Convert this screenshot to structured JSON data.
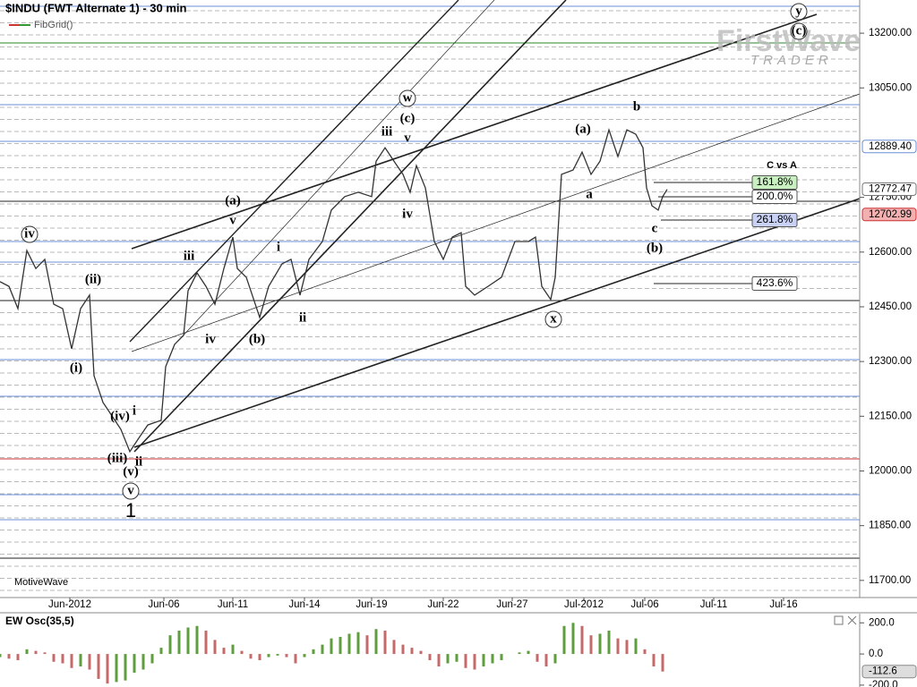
{
  "chart_data": [
    {
      "type": "line",
      "title": "$INDU (FWT Alternate 1) - 30 min",
      "indicator": "FibGrid()",
      "watermark": [
        "FirstWave",
        "TRADER"
      ],
      "footer": "MotiveWave",
      "series": [
        {
          "name": "$INDU",
          "color": "#333333",
          "x": [
            0,
            2.5,
            5,
            7.5,
            10,
            12.5,
            15,
            17.5,
            20,
            22.5,
            25,
            26.25,
            28.75,
            31.25,
            33.75,
            36.25,
            38.75,
            41.25,
            45,
            46.25,
            48.75,
            51.25,
            52.5,
            55,
            57.5,
            60,
            62.5,
            65,
            66.25,
            68.75,
            72.5,
            75,
            78.75,
            81.25,
            83.75,
            86.25,
            90,
            92.5,
            96.25,
            100,
            103.75,
            105,
            107.5,
            110,
            112.5,
            114.5,
            116.25,
            118.75,
            121.25,
            123.75,
            126.25,
            128.75,
            130,
            132.5,
            136.25,
            140,
            143.75,
            147.5,
            149.5,
            151.25,
            153.75,
            155,
            156.75,
            160,
            162.5,
            165,
            167.5,
            170,
            172.5,
            175,
            177.5,
            179.5,
            180.5,
            182,
            183.75,
            185,
            186.25
          ],
          "values": [
            12519,
            12506,
            12445,
            12604,
            12555,
            12580,
            12457,
            12445,
            12335,
            12445,
            12482,
            12261,
            12188,
            12151,
            12114,
            12053,
            12090,
            12126,
            12139,
            12286,
            12347,
            12372,
            12494,
            12543,
            12506,
            12457,
            12555,
            12641,
            12555,
            12531,
            12421,
            12506,
            12568,
            12580,
            12482,
            12580,
            12629,
            12715,
            12752,
            12764,
            12752,
            12849,
            12886,
            12849,
            12813,
            12764,
            12837,
            12776,
            12629,
            12580,
            12641,
            12653,
            12506,
            12482,
            12506,
            12531,
            12629,
            12629,
            12641,
            12506,
            12470,
            12531,
            12813,
            12825,
            12874,
            12813,
            12849,
            12935,
            12862,
            12935,
            12923,
            12886,
            12776,
            12727,
            12715,
            12752,
            12772
          ]
        }
      ],
      "xlim": [
        0,
        240
      ],
      "xticks": [
        {
          "value": 19.5,
          "label": "Jun-2012"
        },
        {
          "value": 45.75,
          "label": "Jun-06"
        },
        {
          "value": 65,
          "label": "Jun-11"
        },
        {
          "value": 85,
          "label": "Jun-14"
        },
        {
          "value": 103.75,
          "label": "Jun-19"
        },
        {
          "value": 123.75,
          "label": "Jun-22"
        },
        {
          "value": 143,
          "label": "Jun-27"
        },
        {
          "value": 163,
          "label": "Jul-2012"
        },
        {
          "value": 180,
          "label": "Jul-06"
        },
        {
          "value": 199.25,
          "label": "Jul-11"
        },
        {
          "value": 218.75,
          "label": "Jul-16"
        }
      ],
      "ylim": [
        11653,
        13291
      ],
      "yticks": [
        {
          "value": 11700,
          "label": "11700.00"
        },
        {
          "value": 11850,
          "label": "11850.00"
        },
        {
          "value": 12000,
          "label": "12000.00"
        },
        {
          "value": 12150,
          "label": "12150.00"
        },
        {
          "value": 12300,
          "label": "12300.00"
        },
        {
          "value": 12450,
          "label": "12450.00"
        },
        {
          "value": 12600,
          "label": "12600.00"
        },
        {
          "value": 12750,
          "label": "12750.00"
        },
        {
          "value": 13050,
          "label": "13050.00"
        },
        {
          "value": 13200,
          "label": "13200.00"
        }
      ],
      "price_markers": [
        {
          "value": 12889.4,
          "label": "12889.40"
        },
        {
          "value": 12772.47,
          "label": "12772.47"
        },
        {
          "value": 12702.99,
          "label": "12702.99"
        }
      ],
      "wave_labels": [
        "iv",
        "(ii)",
        "(i)",
        "(iv)",
        "i",
        "(iii)",
        "ii",
        "(v)",
        "v",
        "1",
        "(a)",
        "v",
        "iii",
        "iv",
        "(b)",
        "i",
        "ii",
        "w",
        "(c)",
        "iii",
        "v",
        "iv",
        "(a)",
        "b",
        "a",
        "c",
        "(b)",
        "x",
        "y",
        "(c)"
      ],
      "fib_labels": [
        "C vs A",
        "161.8%",
        "200.0%",
        "261.8%",
        "423.6%"
      ]
    },
    {
      "type": "bar",
      "title": "EW Osc(35,5)",
      "up_color": "#5e9e3e",
      "down_color": "#c46a6a",
      "x": [
        0,
        2.5,
        5,
        7.5,
        10,
        12.5,
        15,
        17.5,
        20,
        22.5,
        25,
        27.5,
        30,
        32.5,
        35,
        37.5,
        40,
        42.5,
        45,
        47.5,
        50,
        52.5,
        55,
        57.5,
        60,
        62.5,
        65,
        67.5,
        70,
        72.5,
        75,
        77.5,
        80,
        82.5,
        85,
        87.5,
        90,
        92.5,
        95,
        97.5,
        100,
        102.5,
        105,
        107.5,
        110,
        112.5,
        115,
        117.5,
        120,
        122.5,
        125,
        127.5,
        130,
        132.5,
        135,
        137.5,
        140,
        142.5,
        145,
        147.5,
        150,
        152.5,
        155,
        157.5,
        160,
        162.5,
        165,
        167.5,
        170,
        172.5,
        175,
        177.5,
        180,
        182.5,
        185
      ],
      "values": [
        -20,
        -30,
        -40,
        30,
        20,
        10,
        -50,
        -60,
        -90,
        -80,
        -100,
        -160,
        -190,
        -180,
        -170,
        -120,
        -100,
        -60,
        40,
        120,
        150,
        170,
        180,
        150,
        90,
        40,
        60,
        20,
        -30,
        -40,
        -20,
        -10,
        -20,
        -60,
        -20,
        30,
        60,
        100,
        110,
        130,
        140,
        120,
        160,
        150,
        90,
        60,
        40,
        20,
        -40,
        -80,
        -60,
        -50,
        -90,
        -100,
        -80,
        -60,
        -40,
        0,
        10,
        20,
        -50,
        -80,
        -60,
        180,
        200,
        180,
        120,
        130,
        150,
        100,
        90,
        100,
        30,
        -80,
        -112.6
      ],
      "xlim": [
        0,
        240
      ],
      "ylim": [
        -212,
        259
      ],
      "yticks": [
        {
          "value": 200,
          "label": "200.0"
        },
        {
          "value": 0,
          "label": "0.0"
        },
        {
          "value": -200,
          "label": "-200.0"
        }
      ],
      "price_markers": [
        {
          "value": -112.6,
          "label": "-112.6"
        }
      ]
    }
  ]
}
